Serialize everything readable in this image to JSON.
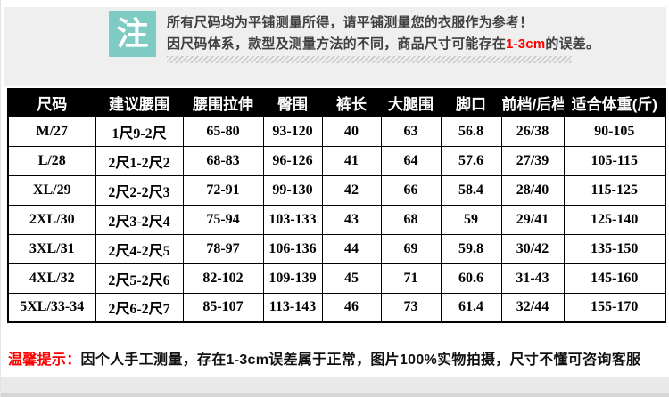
{
  "note": {
    "badge": "注",
    "line1": "所有尺码均为平铺测量所得，请平铺测量您的衣服作为参考！",
    "line2_prefix": "因尺码体系，款型及测量方法的不同，商品尺寸可能存在",
    "line2_highlight": "1-3cm",
    "line2_suffix": "的误差。"
  },
  "table": {
    "headers": [
      "尺码",
      "建议腰围",
      "腰围拉伸",
      "臀围",
      "裤长",
      "大腿围",
      "脚口",
      "前档/后档",
      "适合体重(斤)"
    ],
    "rows": [
      [
        "M/27",
        "1尺9-2尺",
        "65-80",
        "93-120",
        "40",
        "63",
        "56.8",
        "26/38",
        "90-105"
      ],
      [
        "L/28",
        "2尺1-2尺2",
        "68-83",
        "96-126",
        "41",
        "64",
        "57.6",
        "27/39",
        "105-115"
      ],
      [
        "XL/29",
        "2尺2-2尺3",
        "72-91",
        "99-130",
        "42",
        "66",
        "58.4",
        "28/40",
        "115-125"
      ],
      [
        "2XL/30",
        "2尺3-2尺4",
        "75-94",
        "103-133",
        "43",
        "68",
        "59",
        "29/41",
        "125-140"
      ],
      [
        "3XL/31",
        "2尺4-2尺5",
        "78-97",
        "106-136",
        "44",
        "69",
        "59.8",
        "30/42",
        "135-150"
      ],
      [
        "4XL/32",
        "2尺5-2尺6",
        "82-102",
        "109-139",
        "45",
        "71",
        "60.6",
        "31-43",
        "145-160"
      ],
      [
        "5XL/33-34",
        "2尺6-2尺7",
        "85-107",
        "113-143",
        "46",
        "73",
        "61.4",
        "32/44",
        "155-170"
      ]
    ]
  },
  "footer": {
    "tip_label": "温馨提示：",
    "tip_text": "因个人手工测量，存在1-3cm误差属于正常，图片100%实物拍摄，尺寸不懂可咨询客服"
  },
  "colors": {
    "accent_teal": "#7ecbc3",
    "highlight_red": "#ff0000",
    "header_bg": "#000000",
    "note_panel_bg": "#efefef",
    "bottom_strip": "#e9e9e9"
  }
}
